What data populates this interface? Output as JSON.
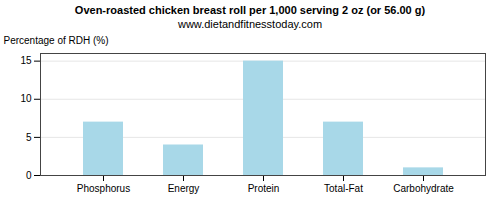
{
  "chart_data": {
    "type": "bar",
    "title": "Oven-roasted chicken breast roll per 1,000 serving 2 oz (or 56.00 g)",
    "subtitle": "www.dietandfitnesstoday.com",
    "categories": [
      "Phosphorus",
      "Energy",
      "Protein",
      "Total-Fat",
      "Carbohydrate"
    ],
    "values": [
      7.0,
      4.0,
      15.0,
      7.0,
      1.0
    ],
    "color": "#a8d8e8",
    "ylabel": "Percentage of RDH (%)",
    "ylim": [
      0,
      16
    ],
    "yticks": [
      0,
      5,
      10,
      15
    ],
    "grid": true
  }
}
